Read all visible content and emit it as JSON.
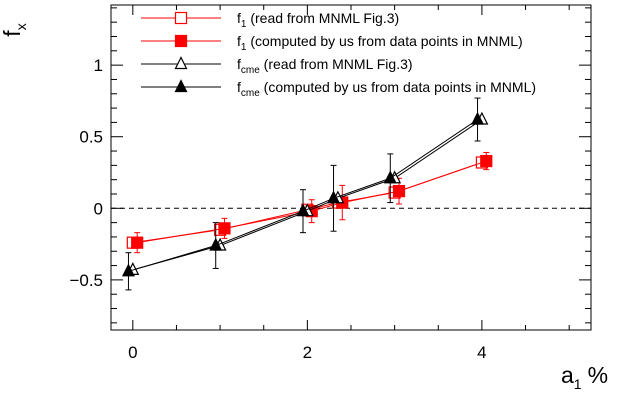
{
  "chart_data": {
    "type": "scatter",
    "title": "",
    "xlabel": "a",
    "xlabel_sub": "1",
    "xlabel_unit": "%",
    "ylabel": "f",
    "ylabel_sub": "x",
    "xlim": [
      -0.25,
      5.25
    ],
    "ylim": [
      -0.85,
      1.42
    ],
    "xticks": [
      0,
      2,
      4
    ],
    "yticks": [
      -0.5,
      0,
      0.5,
      1
    ],
    "ytick_labels": [
      "−0.5",
      "0",
      "0.5",
      "1"
    ],
    "reference_line": {
      "y": 0,
      "style": "dashed"
    },
    "legend_position": "top-right",
    "series": [
      {
        "name": "f1",
        "sub": "1",
        "label": "(read from MNML Fig.3)",
        "color": "#ff0000",
        "marker": "open-square",
        "x": [
          0.0,
          1.0,
          2.0,
          2.35,
          3.0,
          4.0
        ],
        "y": [
          -0.24,
          -0.15,
          -0.01,
          0.04,
          0.11,
          0.32
        ],
        "err": [
          0,
          0,
          0,
          0,
          0,
          0
        ]
      },
      {
        "name": "f1",
        "sub": "1",
        "label": "(computed by us from data points in MNML)",
        "color": "#ff0000",
        "marker": "filled-square",
        "x": [
          0.05,
          1.05,
          2.05,
          2.4,
          3.05,
          4.05
        ],
        "y": [
          -0.24,
          -0.14,
          -0.02,
          0.04,
          0.12,
          0.33
        ],
        "err": [
          0.07,
          0.07,
          0.08,
          0.12,
          0.09,
          0.06
        ]
      },
      {
        "name": "fcme",
        "sub": "cme",
        "label": "(read from MNML Fig.3)",
        "color": "#000000",
        "marker": "open-triangle",
        "x": [
          0.0,
          1.0,
          2.0,
          2.35,
          3.0,
          4.0
        ],
        "y": [
          -0.43,
          -0.26,
          -0.02,
          0.07,
          0.21,
          0.62
        ],
        "err": [
          0,
          0,
          0,
          0,
          0,
          0
        ]
      },
      {
        "name": "fcme",
        "sub": "cme",
        "label": "(computed by us from data points in MNML)",
        "color": "#000000",
        "marker": "filled-triangle",
        "x": [
          -0.05,
          0.95,
          1.95,
          2.3,
          2.95,
          3.95
        ],
        "y": [
          -0.44,
          -0.26,
          -0.02,
          0.07,
          0.21,
          0.62
        ],
        "err": [
          0.13,
          0.16,
          0.15,
          0.23,
          0.17,
          0.15
        ]
      }
    ]
  }
}
